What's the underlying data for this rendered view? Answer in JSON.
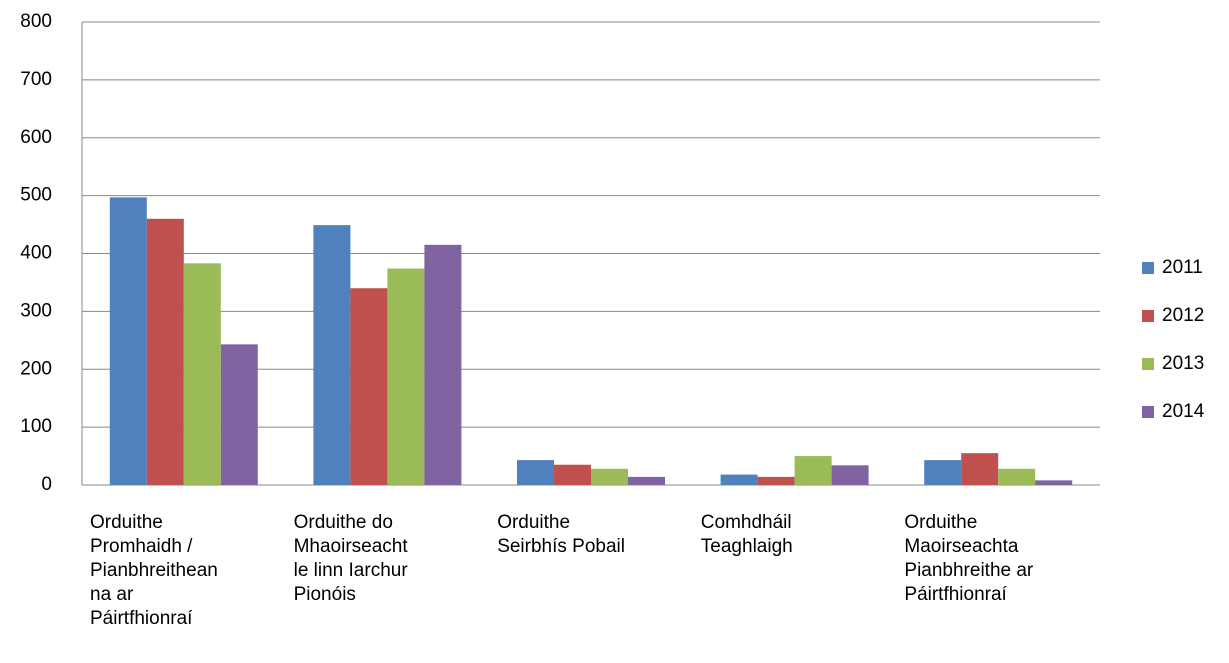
{
  "chart_data": {
    "type": "bar",
    "categories": [
      [
        "Orduithe",
        "Promhaidh /",
        "Pianbhreithean",
        "na ar",
        "Páirtfhionraí"
      ],
      [
        "Orduithe do",
        "Mhaoirseacht",
        "le linn Iarchur",
        "Pionóis"
      ],
      [
        "Orduithe",
        "Seirbhís Pobail"
      ],
      [
        "Comhdháil",
        "Teaghlaigh"
      ],
      [
        "Orduithe",
        "Maoirseachta",
        "Pianbhreithe ar",
        "Páirtfhionraí"
      ]
    ],
    "series": [
      {
        "name": "2011",
        "color": "#4f81bd",
        "values": [
          497,
          449,
          43,
          18,
          43
        ]
      },
      {
        "name": "2012",
        "color": "#c0504d",
        "values": [
          460,
          340,
          35,
          14,
          55
        ]
      },
      {
        "name": "2013",
        "color": "#9bbb59",
        "values": [
          383,
          374,
          28,
          50,
          28
        ]
      },
      {
        "name": "2014",
        "color": "#8064a2",
        "values": [
          243,
          415,
          14,
          34,
          8
        ]
      }
    ],
    "ylim": [
      0,
      800
    ],
    "yticks": [
      0,
      100,
      200,
      300,
      400,
      500,
      600,
      700,
      800
    ],
    "grid": true,
    "legend": "right"
  }
}
